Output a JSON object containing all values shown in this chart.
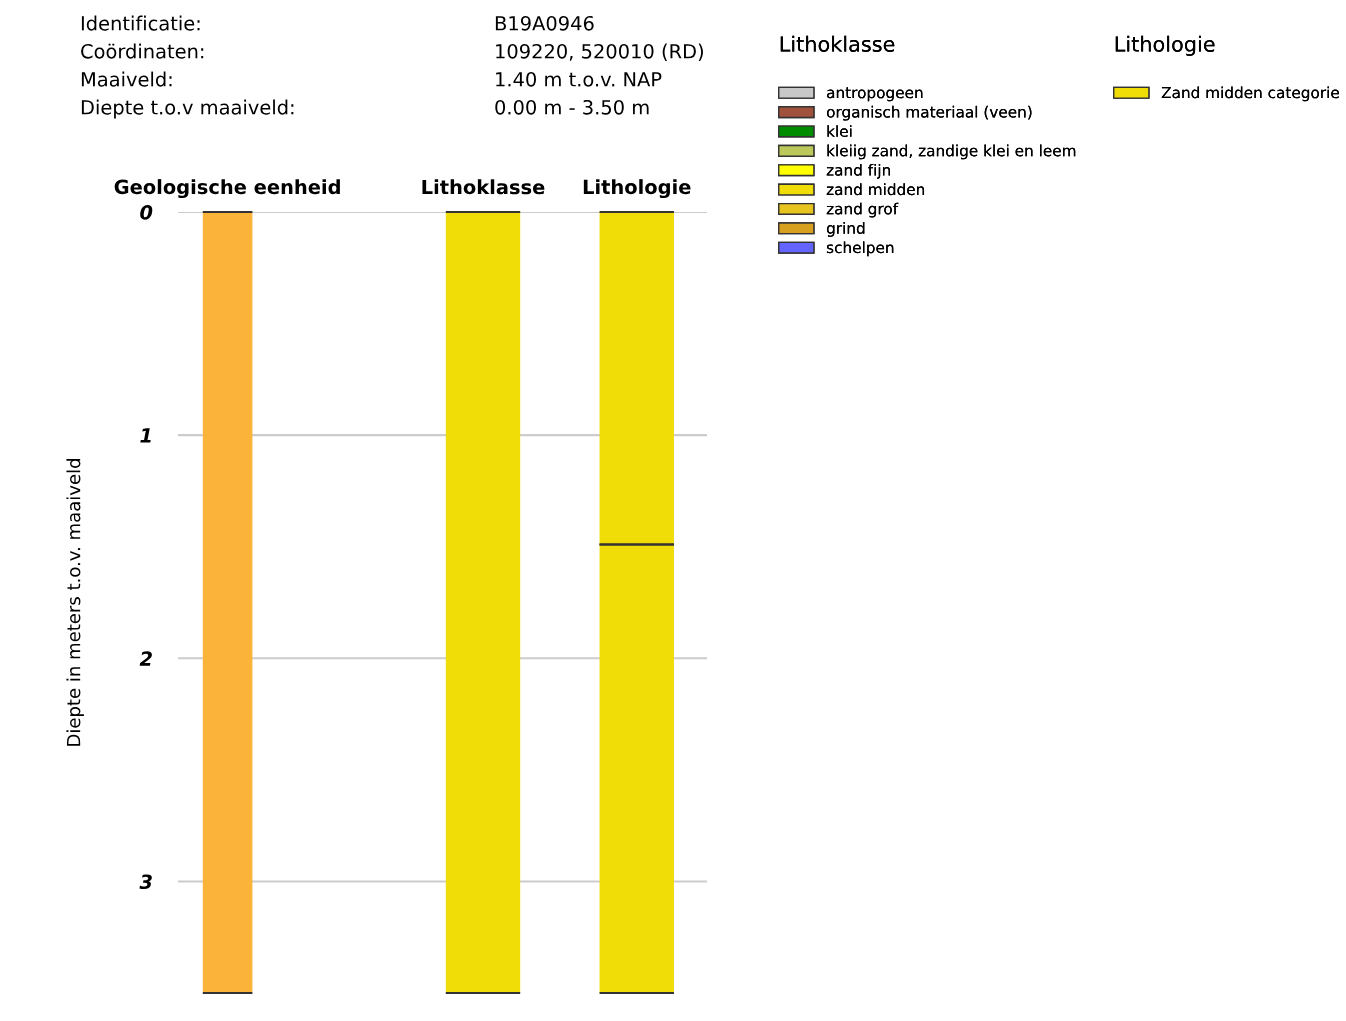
{
  "chart_data": {
    "type": "bar",
    "stacked": true,
    "annotations": [
      "Identificatie:",
      "B19A0946",
      "Coördinaten:",
      "109220, 520010 (RD)",
      "Maaiveld:",
      "1.40 m t.o.v. NAP",
      "Diepte t.o.v maaiveld:",
      "0.00 m - 3.50 m"
    ],
    "categories": [
      "Geologische eenheid",
      "Lithoklasse",
      "Lithologie"
    ],
    "ylabel": "Diepte in meters t.o.v. maaiveld",
    "ylim": [
      3.5,
      0
    ],
    "yticks": [
      0,
      1,
      2,
      3
    ],
    "grid": "y",
    "legend": "right",
    "legend_title": [
      "Lithoklasse",
      "Lithologie"
    ],
    "series": [
      {
        "color": "#fbb33a",
        "values": [
          3.5,
          null,
          null
        ]
      },
      {
        "name": "antropogeen",
        "color": "#c8c8c8",
        "values": [
          null,
          null,
          null
        ]
      },
      {
        "name": "organisch materiaal (veen)",
        "color": "#a0523c",
        "values": [
          null,
          null,
          null
        ]
      },
      {
        "name": "klei",
        "color": "#008c00",
        "values": [
          null,
          null,
          null
        ]
      },
      {
        "name": "kleiig zand, zandige klei en leem",
        "color": "#bcc85a",
        "values": [
          null,
          null,
          null
        ]
      },
      {
        "name": "zand fijn",
        "color": "#ffff00",
        "values": [
          null,
          null,
          null
        ]
      },
      {
        "name": "zand midden",
        "color": "#f0dc06",
        "values": [
          null,
          3.5,
          null
        ]
      },
      {
        "name": "zand grof",
        "color": "#e6c31e",
        "values": [
          null,
          null,
          null
        ]
      },
      {
        "name": "grind",
        "color": "#d7a01e",
        "values": [
          null,
          null,
          null
        ]
      },
      {
        "name": "schelpen",
        "color": "#6464ff",
        "values": [
          null,
          null,
          null
        ]
      },
      {
        "name": "Zand midden categorie",
        "color": "#f0dc06",
        "values": [
          null,
          null,
          1.49
        ]
      },
      {
        "color": "#f0dc06",
        "values": [
          null,
          null,
          2.01
        ]
      }
    ]
  }
}
